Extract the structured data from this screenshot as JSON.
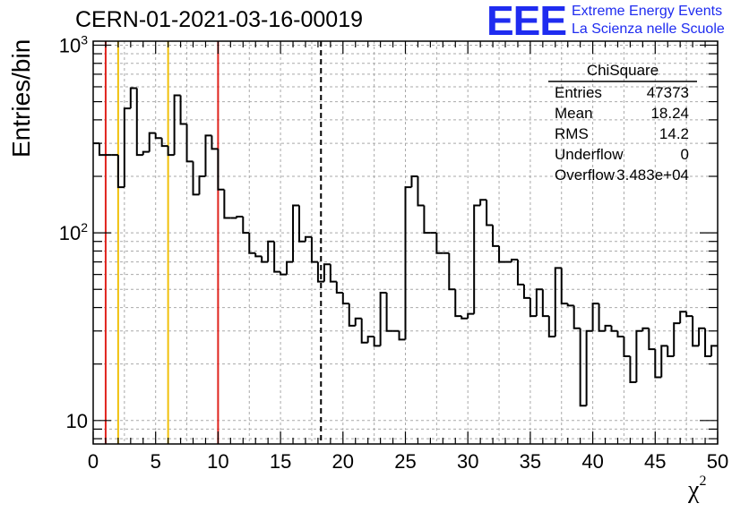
{
  "chart_data": {
    "type": "histogram",
    "title": "CERN-01-2021-03-16-00019",
    "xlabel": "χ",
    "xlabel_superscript": "2",
    "ylabel": "Entries/bin",
    "xlim": [
      0,
      50
    ],
    "ylim": [
      7.5,
      1050
    ],
    "yscale": "log",
    "grid": true,
    "x_ticks": [
      "0",
      "5",
      "10",
      "15",
      "20",
      "25",
      "30",
      "35",
      "40",
      "45",
      "50"
    ],
    "y_ticks": [
      {
        "value": 10,
        "base": "10",
        "exp": ""
      },
      {
        "value": 100,
        "base": "10",
        "exp": "2"
      },
      {
        "value": 1000,
        "base": "10",
        "exp": "3"
      }
    ],
    "bin_width": 0.5,
    "bin_counts": [
      300,
      260,
      260,
      260,
      175,
      460,
      590,
      260,
      270,
      340,
      320,
      290,
      260,
      540,
      380,
      240,
      160,
      200,
      330,
      280,
      170,
      120,
      120,
      122,
      100,
      78,
      75,
      70,
      90,
      62,
      60,
      70,
      140,
      90,
      95,
      70,
      55,
      68,
      55,
      48,
      42,
      32,
      35,
      26,
      28,
      25,
      48,
      30,
      30,
      27,
      175,
      200,
      140,
      100,
      100,
      78,
      78,
      50,
      36,
      35,
      37,
      140,
      150,
      110,
      85,
      70,
      70,
      72,
      53,
      45,
      36,
      50,
      36,
      28,
      65,
      42,
      41,
      31,
      12,
      30,
      42,
      30,
      32,
      30,
      28,
      22,
      16,
      30,
      31,
      24,
      17,
      25,
      22,
      33,
      38,
      36,
      25,
      31,
      22,
      25
    ],
    "vlines": [
      {
        "x": 1,
        "color": "#e0241e",
        "style": "solid"
      },
      {
        "x": 2,
        "color": "#f0c10c",
        "style": "solid"
      },
      {
        "x": 6,
        "color": "#f0c10c",
        "style": "solid"
      },
      {
        "x": 10,
        "color": "#e0241e",
        "style": "solid"
      },
      {
        "x": 18.24,
        "color": "#000000",
        "style": "dashed"
      }
    ],
    "stats_box": {
      "title": "ChiSquare",
      "rows": [
        {
          "label": "Entries",
          "value": "47373"
        },
        {
          "label": "Mean",
          "value": "18.24"
        },
        {
          "label": "RMS",
          "value": "14.2"
        },
        {
          "label": "Underflow",
          "value": "0"
        },
        {
          "label": "Overflow",
          "value": "3.483e+04"
        }
      ]
    }
  },
  "branding": {
    "logo_text": "EEE",
    "line1": "Extreme Energy Events",
    "line2": "La Scienza nelle Scuole",
    "color": "#1f2cf0"
  }
}
